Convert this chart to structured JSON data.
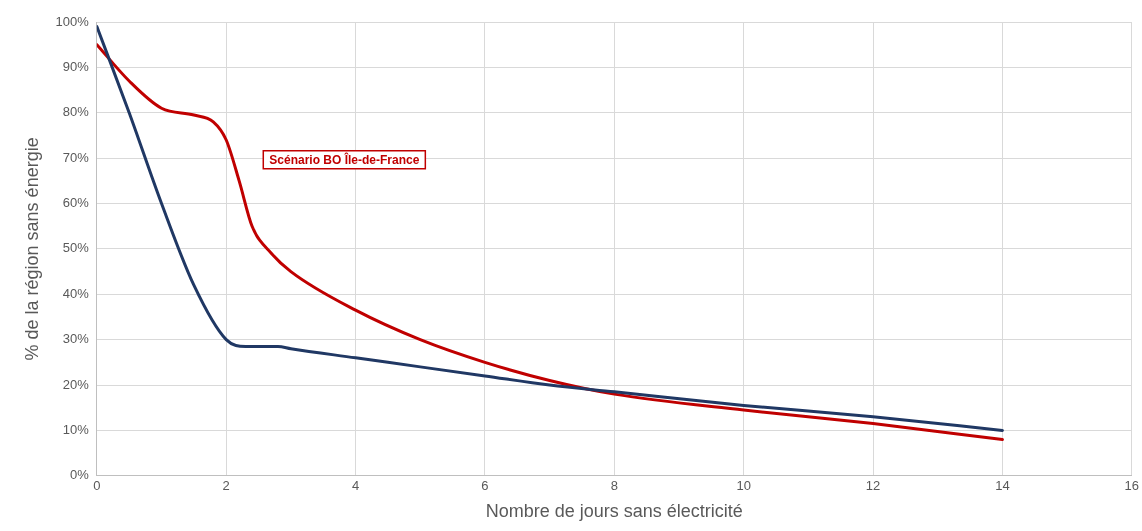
{
  "chart_data": {
    "type": "line",
    "xlabel": "Nombre de jours sans électricité",
    "ylabel": "% de la région sans énergie",
    "xlim": [
      0,
      16
    ],
    "xticks": [
      0,
      2,
      4,
      6,
      8,
      10,
      12,
      14,
      16
    ],
    "ylim": [
      0,
      100
    ],
    "yticks": [
      {
        "value": 0,
        "label": "0%"
      },
      {
        "value": 10,
        "label": "10%"
      },
      {
        "value": 20,
        "label": "20%"
      },
      {
        "value": 30,
        "label": "30%"
      },
      {
        "value": 40,
        "label": "40%"
      },
      {
        "value": 50,
        "label": "50%"
      },
      {
        "value": 60,
        "label": "60%"
      },
      {
        "value": 70,
        "label": "70%"
      },
      {
        "value": 80,
        "label": "80%"
      },
      {
        "value": 90,
        "label": "90%"
      },
      {
        "value": 100,
        "label": "100%"
      }
    ],
    "grid": true,
    "legend": false,
    "marker": "none",
    "line_style": "solid",
    "series": [
      {
        "color": "#203864",
        "x": [
          0,
          0.5,
          1,
          1.5,
          2,
          2.3,
          2.8,
          3,
          4,
          5,
          6,
          7,
          8,
          10,
          12,
          14
        ],
        "values": [
          99,
          80,
          60,
          42,
          30,
          28.5,
          28.5,
          28,
          26,
          24,
          22,
          20,
          18.5,
          15.5,
          13,
          10
        ]
      },
      {
        "name": "Scénario BO Île-de-France",
        "color": "#c00000",
        "x": [
          0,
          0.5,
          1,
          1.5,
          1.8,
          2,
          2.2,
          2.4,
          2.7,
          3,
          4,
          5,
          6,
          7,
          8,
          10,
          12,
          14
        ],
        "values": [
          95,
          87,
          81,
          79.5,
          78,
          74,
          65,
          55,
          49,
          45,
          36.5,
          30,
          25,
          21,
          18,
          14.5,
          11.5,
          8
        ]
      }
    ]
  }
}
